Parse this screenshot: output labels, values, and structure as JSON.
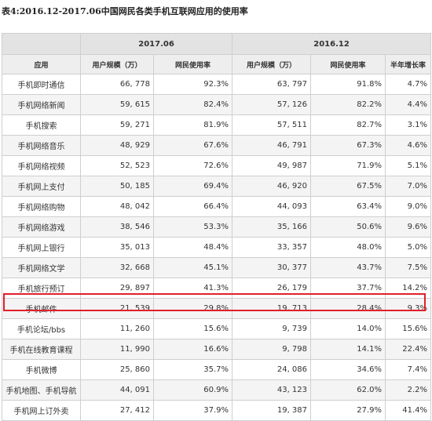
{
  "caption": "表4:2016.12-2017.06中国网民各类手机互联网应用的使用率",
  "table": {
    "period_headers": [
      "2017.06",
      "2016.12"
    ],
    "column_headers": [
      "应用",
      "用户规模（万）",
      "网民使用率",
      "用户规模（万）",
      "网民使用率",
      "半年增长率"
    ],
    "rows": [
      [
        "手机即时通信",
        "66, 778",
        "92.3%",
        "63, 797",
        "91.8%",
        "4.7%"
      ],
      [
        "手机网络新闻",
        "59, 615",
        "82.4%",
        "57, 126",
        "82.2%",
        "4.4%"
      ],
      [
        "手机搜索",
        "59, 271",
        "81.9%",
        "57, 511",
        "82.7%",
        "3.1%"
      ],
      [
        "手机网络音乐",
        "48, 929",
        "67.6%",
        "46, 791",
        "67.3%",
        "4.6%"
      ],
      [
        "手机网络视频",
        "52, 523",
        "72.6%",
        "49, 987",
        "71.9%",
        "5.1%"
      ],
      [
        "手机网上支付",
        "50, 185",
        "69.4%",
        "46, 920",
        "67.5%",
        "7.0%"
      ],
      [
        "手机网络购物",
        "48, 042",
        "66.4%",
        "44, 093",
        "63.4%",
        "9.0%"
      ],
      [
        "手机网络游戏",
        "38, 546",
        "53.3%",
        "35, 166",
        "50.6%",
        "9.6%"
      ],
      [
        "手机网上银行",
        "35, 013",
        "48.4%",
        "33, 357",
        "48.0%",
        "5.0%"
      ],
      [
        "手机网络文学",
        "32, 668",
        "45.1%",
        "30, 377",
        "43.7%",
        "7.5%"
      ],
      [
        "手机旅行预订",
        "29, 897",
        "41.3%",
        "26, 179",
        "37.7%",
        "14.2%"
      ],
      [
        "手机邮件",
        "21, 539",
        "29.8%",
        "19, 713",
        "28.4%",
        "9.3%"
      ],
      [
        "手机论坛/bbs",
        "11, 260",
        "15.6%",
        "9, 739",
        "14.0%",
        "15.6%"
      ],
      [
        "手机在线教育课程",
        "11, 990",
        "16.6%",
        "9, 798",
        "14.1%",
        "22.4%"
      ],
      [
        "手机微博",
        "25, 860",
        "35.7%",
        "24, 086",
        "34.6%",
        "7.4%"
      ],
      [
        "手机地图、手机导航",
        "44, 091",
        "60.9%",
        "43, 123",
        "62.0%",
        "2.2%"
      ],
      [
        "手机网上订外卖",
        "27, 412",
        "37.9%",
        "19, 387",
        "27.9%",
        "41.4%"
      ]
    ],
    "highlight_color": "#e0202a"
  }
}
